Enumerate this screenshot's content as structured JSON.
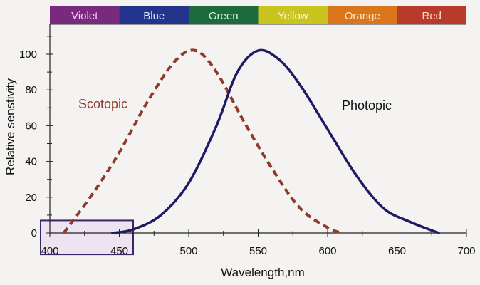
{
  "chart_data": {
    "type": "line",
    "xlabel": "Wavelength,nm",
    "ylabel": "Relative senstivity",
    "xlim": [
      400,
      700
    ],
    "ylim": [
      0,
      100
    ],
    "x_ticks": [
      "400",
      "450",
      "500",
      "550",
      "600",
      "650",
      "700"
    ],
    "y_ticks": [
      "0",
      "20",
      "40",
      "60",
      "80",
      "100"
    ],
    "x_minor_step": 25,
    "y_minor_step": 10,
    "spectrum_bands": [
      {
        "label": "Violet",
        "from": 400,
        "to": 450,
        "color": "#7a2a7e",
        "text_color": "#f3d6f0"
      },
      {
        "label": "Blue",
        "from": 450,
        "to": 500,
        "color": "#23348c",
        "text_color": "#dde3ff"
      },
      {
        "label": "Green",
        "from": 500,
        "to": 550,
        "color": "#1d6a3a",
        "text_color": "#d9f3df"
      },
      {
        "label": "Yellow",
        "from": 550,
        "to": 600,
        "color": "#c9c41e",
        "text_color": "#fbfbd2"
      },
      {
        "label": "Orange",
        "from": 600,
        "to": 650,
        "color": "#d9761c",
        "text_color": "#ffe5c6"
      },
      {
        "label": "Red",
        "from": 650,
        "to": 700,
        "color": "#b83a28",
        "text_color": "#ffd9d2"
      }
    ],
    "series": [
      {
        "name": "Scotopic",
        "style": "dashed",
        "color": "#8e3b2a",
        "x": [
          410,
          430,
          450,
          470,
          490,
          505,
          520,
          540,
          560,
          580,
          600,
          610
        ],
        "y": [
          0,
          21,
          45,
          73,
          96,
          102,
          90,
          62,
          36,
          14,
          3,
          0
        ]
      },
      {
        "name": "Photopic",
        "style": "solid",
        "color": "#1e1a66",
        "x": [
          445,
          460,
          480,
          500,
          520,
          535,
          550,
          565,
          580,
          600,
          620,
          640,
          660,
          680
        ],
        "y": [
          0,
          2,
          10,
          28,
          60,
          90,
          102,
          97,
          83,
          58,
          33,
          14,
          6,
          0
        ]
      }
    ],
    "annotations": [
      {
        "text": "Scotopic",
        "color": "#8e3b2a"
      },
      {
        "text": "Photopic",
        "color": "#111111"
      }
    ],
    "highlight_box": {
      "x": [
        400,
        460
      ],
      "y": [
        -12,
        7
      ],
      "fill": "#ece4f0",
      "stroke": "#3d2368"
    }
  }
}
